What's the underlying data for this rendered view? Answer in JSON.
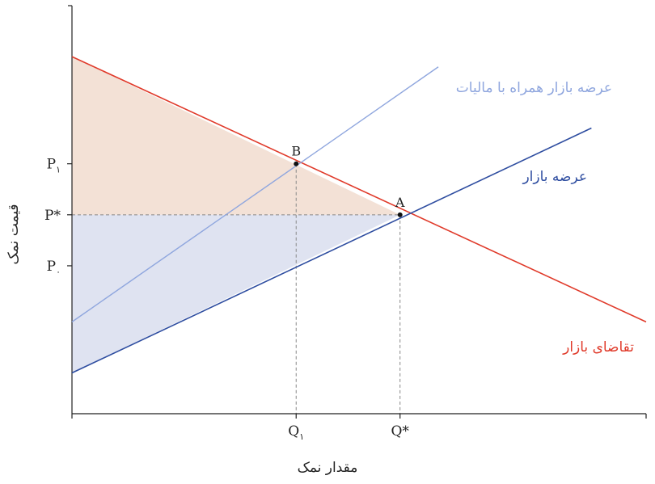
{
  "chart_data": {
    "type": "line",
    "title": "",
    "xlabel": "مقدار نمک",
    "ylabel": "قیمت نمک",
    "xlim": [
      0,
      10.5
    ],
    "ylim": [
      0,
      8
    ],
    "grid": false,
    "series": [
      {
        "name": "تقاضای بازار",
        "color": "#e03a2a",
        "points": [
          [
            0,
            7.0
          ],
          [
            10.5,
            1.8
          ]
        ]
      },
      {
        "name": "عرضه بازار",
        "color": "#2e4da0",
        "points": [
          [
            0,
            0.8
          ],
          [
            9.5,
            5.6
          ]
        ]
      },
      {
        "name": "عرضه بازار همراه با مالیات",
        "color": "#8fa6de",
        "points": [
          [
            0,
            1.8
          ],
          [
            6.7,
            6.8
          ]
        ]
      }
    ],
    "regions": [
      {
        "name": "shaded-above-pstar",
        "color": "#f3e1d6",
        "polygon": [
          [
            0,
            7.0
          ],
          [
            0,
            3.9
          ],
          [
            6.0,
            3.9
          ]
        ]
      },
      {
        "name": "shaded-below-pstar",
        "color": "#dfe3f1",
        "polygon": [
          [
            0,
            3.9
          ],
          [
            6.0,
            3.9
          ],
          [
            0,
            0.8
          ]
        ]
      }
    ],
    "points": [
      {
        "label": "A",
        "x": 6.0,
        "y": 3.9
      },
      {
        "label": "B",
        "x": 4.1,
        "y": 4.9
      }
    ],
    "x_ticks": [
      {
        "main": "Q",
        "sub": "۱",
        "value": 4.1
      },
      {
        "main": "Q*",
        "sub": "",
        "value": 6.0
      }
    ],
    "y_ticks": [
      {
        "main": "P",
        "sub": "۱",
        "value": 4.9
      },
      {
        "main": "P*",
        "sub": "",
        "value": 3.9
      },
      {
        "main": "P",
        "sub": "۰",
        "value": 2.9
      }
    ],
    "dashed_guides": [
      {
        "from": [
          0,
          3.9
        ],
        "to": [
          6.0,
          3.9
        ]
      },
      {
        "from": [
          4.1,
          4.9
        ],
        "to": [
          4.1,
          0
        ]
      },
      {
        "from": [
          6.0,
          3.9
        ],
        "to": [
          6.0,
          0
        ]
      }
    ]
  }
}
